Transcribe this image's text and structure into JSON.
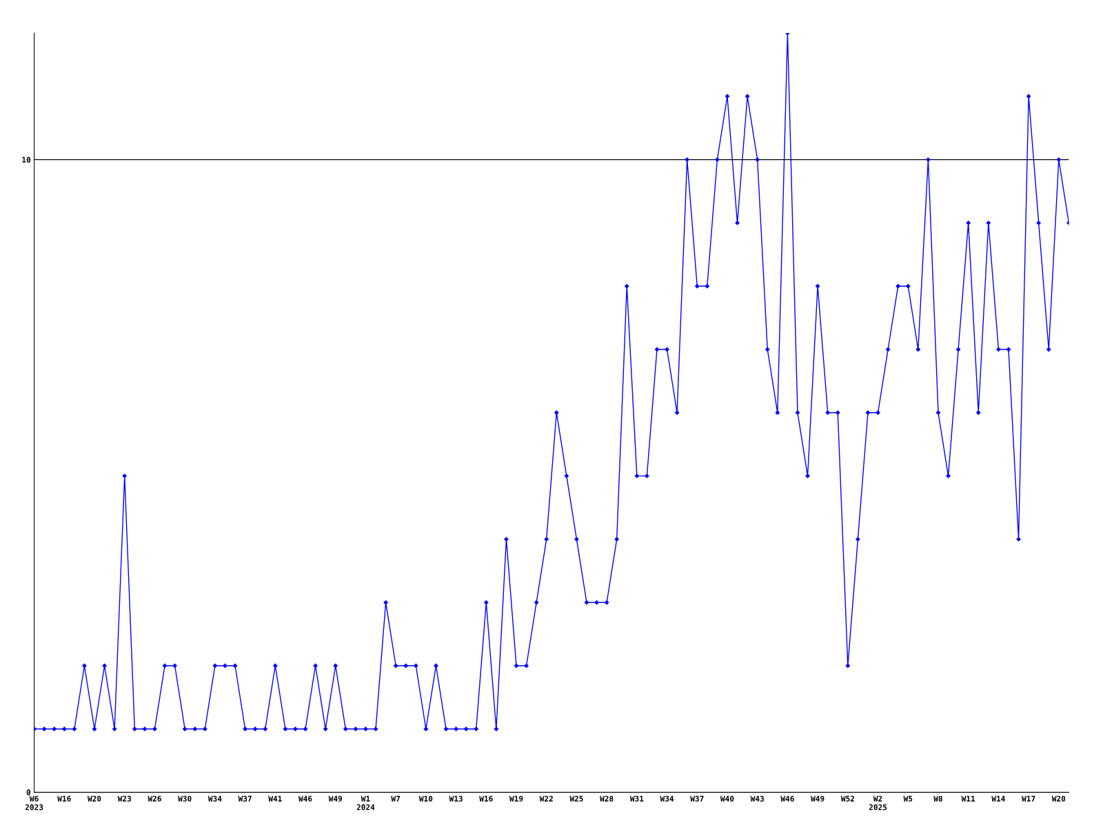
{
  "chart_data": {
    "type": "line",
    "categories": [
      "W6\n2023",
      null,
      null,
      "W16",
      null,
      null,
      "W20",
      null,
      null,
      "W23",
      null,
      null,
      "W26",
      null,
      null,
      "W30",
      null,
      null,
      "W34",
      null,
      null,
      "W37",
      null,
      null,
      "W41",
      null,
      null,
      "W46",
      null,
      null,
      "W49",
      null,
      null,
      "W1\n2024",
      null,
      null,
      "W7",
      null,
      null,
      "W10",
      null,
      null,
      "W13",
      null,
      null,
      "W16",
      null,
      null,
      "W19",
      null,
      null,
      "W22",
      null,
      null,
      "W25",
      null,
      null,
      "W28",
      null,
      null,
      "W31",
      null,
      null,
      "W34",
      null,
      null,
      "W37",
      null,
      null,
      "W40",
      null,
      null,
      "W43",
      null,
      null,
      "W46",
      null,
      null,
      "W49",
      null,
      null,
      "W52",
      null,
      null,
      "W2\n2025",
      null,
      null,
      "W5",
      null,
      null,
      "W8",
      null,
      null,
      "W11",
      null,
      null,
      "W14",
      null,
      null,
      "W17",
      null,
      null,
      "W20",
      null
    ],
    "series": [
      {
        "color": "#0000ff",
        "values": [
          1,
          1,
          1,
          1,
          1,
          2,
          1,
          2,
          1,
          5,
          1,
          1,
          1,
          2,
          2,
          1,
          1,
          1,
          2,
          2,
          2,
          1,
          1,
          1,
          2,
          1,
          1,
          1,
          2,
          1,
          2,
          1,
          1,
          1,
          1,
          3,
          2,
          2,
          2,
          1,
          2,
          1,
          1,
          1,
          1,
          3,
          1,
          4,
          2,
          2,
          3,
          4,
          6,
          5,
          4,
          3,
          3,
          3,
          4,
          8,
          5,
          5,
          7,
          7,
          6,
          10,
          8,
          8,
          10,
          11,
          9,
          11,
          10,
          7,
          6,
          12,
          6,
          5,
          8,
          6,
          6,
          2,
          4,
          6,
          6,
          7,
          8,
          8,
          7,
          10,
          6,
          5,
          7,
          9,
          6,
          9,
          7,
          7,
          4,
          11,
          9,
          7,
          10,
          9
        ]
      }
    ],
    "ylim": [
      0,
      12
    ],
    "yticks": [
      0,
      10
    ],
    "grid": "y",
    "marker": "diamond",
    "line_style": "solid",
    "legend": false
  }
}
